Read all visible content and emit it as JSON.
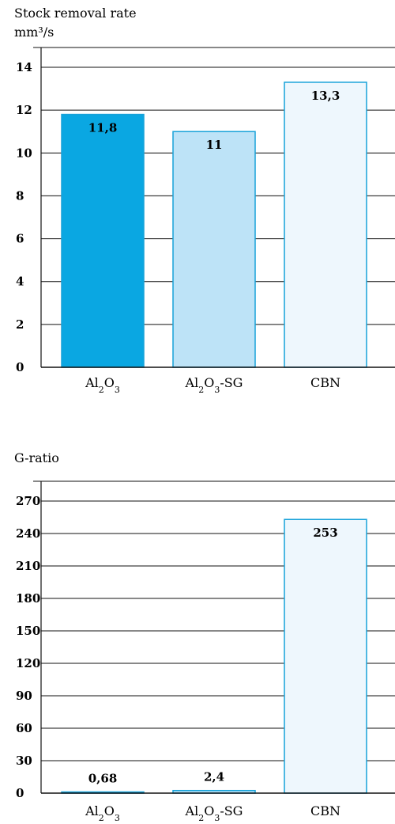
{
  "chart_data": [
    {
      "type": "bar",
      "title": "",
      "ylabel_lines": [
        "Stock removal rate",
        "mm³/s"
      ],
      "xlabel": "",
      "ylim": [
        0,
        14
      ],
      "yticks": [
        "0",
        "2",
        "4",
        "6",
        "8",
        "10",
        "12",
        "14"
      ],
      "tick_values": [
        0,
        2,
        4,
        6,
        8,
        10,
        12,
        14
      ],
      "categories": [
        "Al2O3",
        "Al2O3-SG",
        "CBN"
      ],
      "values": [
        11.8,
        11,
        13.3
      ],
      "data_labels": [
        "11,8",
        "11",
        "13,3"
      ],
      "grid": true,
      "legend": "none",
      "colors": {
        "fills": [
          "#0aa7e2",
          "#bde3f7",
          "#eef7fd"
        ],
        "stroke": "#17a2d9",
        "axis": "#111111"
      }
    },
    {
      "type": "bar",
      "title": "",
      "ylabel_lines": [
        "G-ratio"
      ],
      "xlabel": "",
      "ylim": [
        0,
        270
      ],
      "yticks": [
        "0",
        "30",
        "60",
        "90",
        "120",
        "150",
        "180",
        "210",
        "240",
        "270"
      ],
      "tick_values": [
        0,
        30,
        60,
        90,
        120,
        150,
        180,
        210,
        240,
        270
      ],
      "categories": [
        "Al2O3",
        "Al2O3-SG",
        "CBN"
      ],
      "values": [
        0.68,
        2.4,
        253
      ],
      "data_labels": [
        "0,68",
        "2,4",
        "253"
      ],
      "grid": true,
      "legend": "none",
      "colors": {
        "fills": [
          "#0aa7e2",
          "#bde3f7",
          "#eef7fd"
        ],
        "stroke": "#17a2d9",
        "axis": "#111111"
      }
    }
  ]
}
